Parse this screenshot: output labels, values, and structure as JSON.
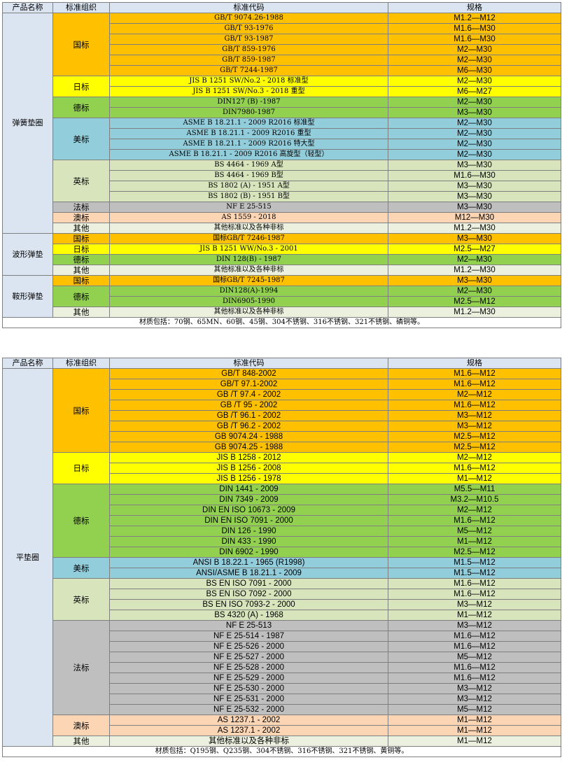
{
  "colors": {
    "header": "#dbe5f1",
    "orange": "#ffc000",
    "yellow": "#ffff00",
    "green": "#92d050",
    "blue": "#92cddc",
    "olive": "#d8e4bc",
    "gray": "#bfbfbf",
    "peach": "#fcd5b4",
    "cream": "#ebf1de"
  },
  "tables": [
    {
      "headers": [
        "产品名称",
        "标准组织",
        "标准代码",
        "规格"
      ],
      "material_note": "材质包括：70钢、65MN、60钢、45钢、304不锈钢、316不锈钢、321不锈钢、磷铜等。",
      "products": [
        {
          "name": "弹簧垫圈",
          "groups": [
            {
              "org": "国标",
              "color": "orange",
              "rows": [
                {
                  "code": "GB/T 9074.26-1988",
                  "spec": "M1.2—M12"
                },
                {
                  "code": "GB/T 93-1976",
                  "spec": "M1.6—M30"
                },
                {
                  "code": "GB/T 93-1987",
                  "spec": "M1.6—M30"
                },
                {
                  "code": "GB/T 859-1976",
                  "spec": "M2—M30"
                },
                {
                  "code": "GB/T 859-1987",
                  "spec": "M2—M30"
                },
                {
                  "code": "GB/T 7244-1987",
                  "spec": "M6—M30"
                }
              ]
            },
            {
              "org": "日标",
              "color": "yellow",
              "rows": [
                {
                  "code": "JIS B 1251 SW/No.2 - 2018 标准型",
                  "spec": "M2—M30"
                },
                {
                  "code": "JIS B 1251 SW/No.3 - 2018 重型",
                  "spec": "M6—M27"
                }
              ]
            },
            {
              "org": "德标",
              "color": "green",
              "rows": [
                {
                  "code": "DIN127 (B) -1987",
                  "spec": "M2—M30"
                },
                {
                  "code": "DIN7980-1987",
                  "spec": "M3—M30"
                }
              ]
            },
            {
              "org": "美标",
              "color": "blue",
              "rows": [
                {
                  "code": "ASME B 18.21.1 - 2009 R2016 标准型",
                  "spec": "M2—M30"
                },
                {
                  "code": "ASME B 18.21.1 - 2009 R2016 重型",
                  "spec": "M2—M30"
                },
                {
                  "code": "ASME B 18.21.1 - 2009 R2016 特大型",
                  "spec": "M2—M30"
                },
                {
                  "code": "ASME B 18.21.1 - 2009 R2016 高旋型（轻型）",
                  "spec": "M2—M30"
                }
              ]
            },
            {
              "org": "英标",
              "color": "olive",
              "rows": [
                {
                  "code": "BS 4464 - 1969 A型",
                  "spec": "M3—M30"
                },
                {
                  "code": "BS 4464 - 1969 B型",
                  "spec": "M1.6—M30"
                },
                {
                  "code": "BS 1802 (A) - 1951 A型",
                  "spec": "M3—M30"
                },
                {
                  "code": "BS 1802 (B) - 1951 B型",
                  "spec": "M3—M30"
                }
              ]
            },
            {
              "org": "法标",
              "color": "gray",
              "rows": [
                {
                  "code": "NF E 25-515",
                  "spec": "M3—M30"
                }
              ]
            },
            {
              "org": "澳标",
              "color": "peach",
              "rows": [
                {
                  "code": "AS 1559 - 2018",
                  "spec": "M12—M30"
                }
              ]
            },
            {
              "org": "其他",
              "color": "cream",
              "rows": [
                {
                  "code": "其他标准以及各种非标",
                  "spec": "M1.2—M30"
                }
              ]
            }
          ]
        },
        {
          "name": "波形弹垫",
          "groups": [
            {
              "org": "国标",
              "color": "orange",
              "rows": [
                {
                  "code": "国标GB/T 7246-1987",
                  "spec": "M3—M30"
                }
              ]
            },
            {
              "org": "日标",
              "color": "yellow",
              "rows": [
                {
                  "code": "JIS B 1251 WW/No.3 - 2001",
                  "spec": "M2.5—M27"
                }
              ]
            },
            {
              "org": "德标",
              "color": "green",
              "rows": [
                {
                  "code": "DIN 128(B) - 1987",
                  "spec": "M2—M30"
                }
              ]
            },
            {
              "org": "其他",
              "color": "cream",
              "rows": [
                {
                  "code": "其他标准以及各种非标",
                  "spec": "M1.2—M30"
                }
              ]
            }
          ]
        },
        {
          "name": "鞍形弹垫",
          "groups": [
            {
              "org": "国标",
              "color": "orange",
              "rows": [
                {
                  "code": "国标GB/T 7245-1987",
                  "spec": "M3—M30"
                }
              ]
            },
            {
              "org": "德标",
              "color": "green",
              "rows": [
                {
                  "code": "DIN128(A)-1994",
                  "spec": "M2—M30"
                },
                {
                  "code": "DIN6905-1990",
                  "spec": "M2.5—M12"
                }
              ]
            },
            {
              "org": "其他",
              "color": "cream",
              "rows": [
                {
                  "code": "其他标准以及各种非标",
                  "spec": "M1.2—M30"
                }
              ]
            }
          ]
        }
      ]
    },
    {
      "headers": [
        "产品名称",
        "标准组织",
        "标准代码",
        "规格"
      ],
      "material_note": "材质包括：Q195钢、Q235钢、304不锈钢、316不锈钢、321不锈钢、黄铜等。",
      "products": [
        {
          "name": "平垫圈",
          "groups": [
            {
              "org": "国标",
              "color": "orange",
              "rows": [
                {
                  "code": "GB/T 848-2002",
                  "spec": "M1.6—M12"
                },
                {
                  "code": "GB/T 97.1-2002",
                  "spec": "M1.6—M12"
                },
                {
                  "code": "GB /T 97.4 - 2002",
                  "spec": "M2—M12"
                },
                {
                  "code": "GB /T 95 - 2002",
                  "spec": "M1.6—M12"
                },
                {
                  "code": "GB /T 96.1 - 2002",
                  "spec": "M3—M12"
                },
                {
                  "code": "GB /T 96.2 - 2002",
                  "spec": "M3—M12"
                },
                {
                  "code": "GB 9074.24 - 1988",
                  "spec": "M2.5—M12"
                },
                {
                  "code": "GB 9074.25 - 1988",
                  "spec": "M2.5—M12"
                }
              ]
            },
            {
              "org": "日标",
              "color": "yellow",
              "rows": [
                {
                  "code": "JIS B 1258 - 2012",
                  "spec": "M2—M12"
                },
                {
                  "code": "JIS B 1256 - 2008",
                  "spec": "M1.6—M12"
                },
                {
                  "code": "JIS B 1256 - 1978",
                  "spec": "M1—M12"
                }
              ]
            },
            {
              "org": "德标",
              "color": "green",
              "rows": [
                {
                  "code": "DIN 1441 - 2009",
                  "spec": "M5.5—M11"
                },
                {
                  "code": "DIN 7349 - 2009",
                  "spec": "M3.2—M10.5"
                },
                {
                  "code": "DIN EN ISO 10673 - 2009",
                  "spec": "M2—M12"
                },
                {
                  "code": "DIN EN ISO 7091 - 2000",
                  "spec": "M1.6—M12"
                },
                {
                  "code": "DIN 126 - 1990",
                  "spec": "M5—M12"
                },
                {
                  "code": "DIN 433 - 1990",
                  "spec": "M1—M12"
                },
                {
                  "code": "DIN 6902 - 1990",
                  "spec": "M2.5—M12"
                }
              ]
            },
            {
              "org": "美标",
              "color": "blue",
              "rows": [
                {
                  "code": "ANSI B 18.22.1 - 1965 (R1998)",
                  "spec": "M1.5—M12"
                },
                {
                  "code": "ANSI/ASME B 18.21.1 - 2009",
                  "spec": "M1.5—M12"
                }
              ]
            },
            {
              "org": "英标",
              "color": "olive",
              "rows": [
                {
                  "code": "BS EN ISO 7091 - 2000",
                  "spec": "M1.6—M12"
                },
                {
                  "code": "BS EN ISO 7092 - 2000",
                  "spec": "M1.6—M12"
                },
                {
                  "code": "BS EN ISO 7093-2 - 2000",
                  "spec": "M3—M12"
                },
                {
                  "code": "BS 4320 (A) - 1968",
                  "spec": "M1—M12"
                }
              ]
            },
            {
              "org": "法标",
              "color": "gray",
              "rows": [
                {
                  "code": "NF E 25-513",
                  "spec": "M3—M12"
                },
                {
                  "code": "NF E 25-514 - 1987",
                  "spec": "M1.6—M12"
                },
                {
                  "code": "NF E 25-526 - 2000",
                  "spec": "M1.6—M12"
                },
                {
                  "code": "NF E 25-527 - 2000",
                  "spec": "M5—M12"
                },
                {
                  "code": "NF E 25-528 - 2000",
                  "spec": "M1.6—M12"
                },
                {
                  "code": "NF E 25-529 - 2000",
                  "spec": "M1.6—M12"
                },
                {
                  "code": "NF E 25-530 - 2000",
                  "spec": "M3—M12"
                },
                {
                  "code": "NF E 25-531 - 2000",
                  "spec": "M3—M12"
                },
                {
                  "code": "NF E 25-532 - 2000",
                  "spec": "M5—M12"
                }
              ]
            },
            {
              "org": "澳标",
              "color": "peach",
              "rows": [
                {
                  "code": "AS 1237.1 - 2002",
                  "spec": "M1—M12"
                },
                {
                  "code": "AS 1237.1 - 2002",
                  "spec": "M1—M12"
                }
              ]
            },
            {
              "org": "其他",
              "color": "cream",
              "rows": [
                {
                  "code": "其他标准以及各种非标",
                  "spec": "M1—M12"
                }
              ]
            }
          ]
        }
      ]
    }
  ]
}
